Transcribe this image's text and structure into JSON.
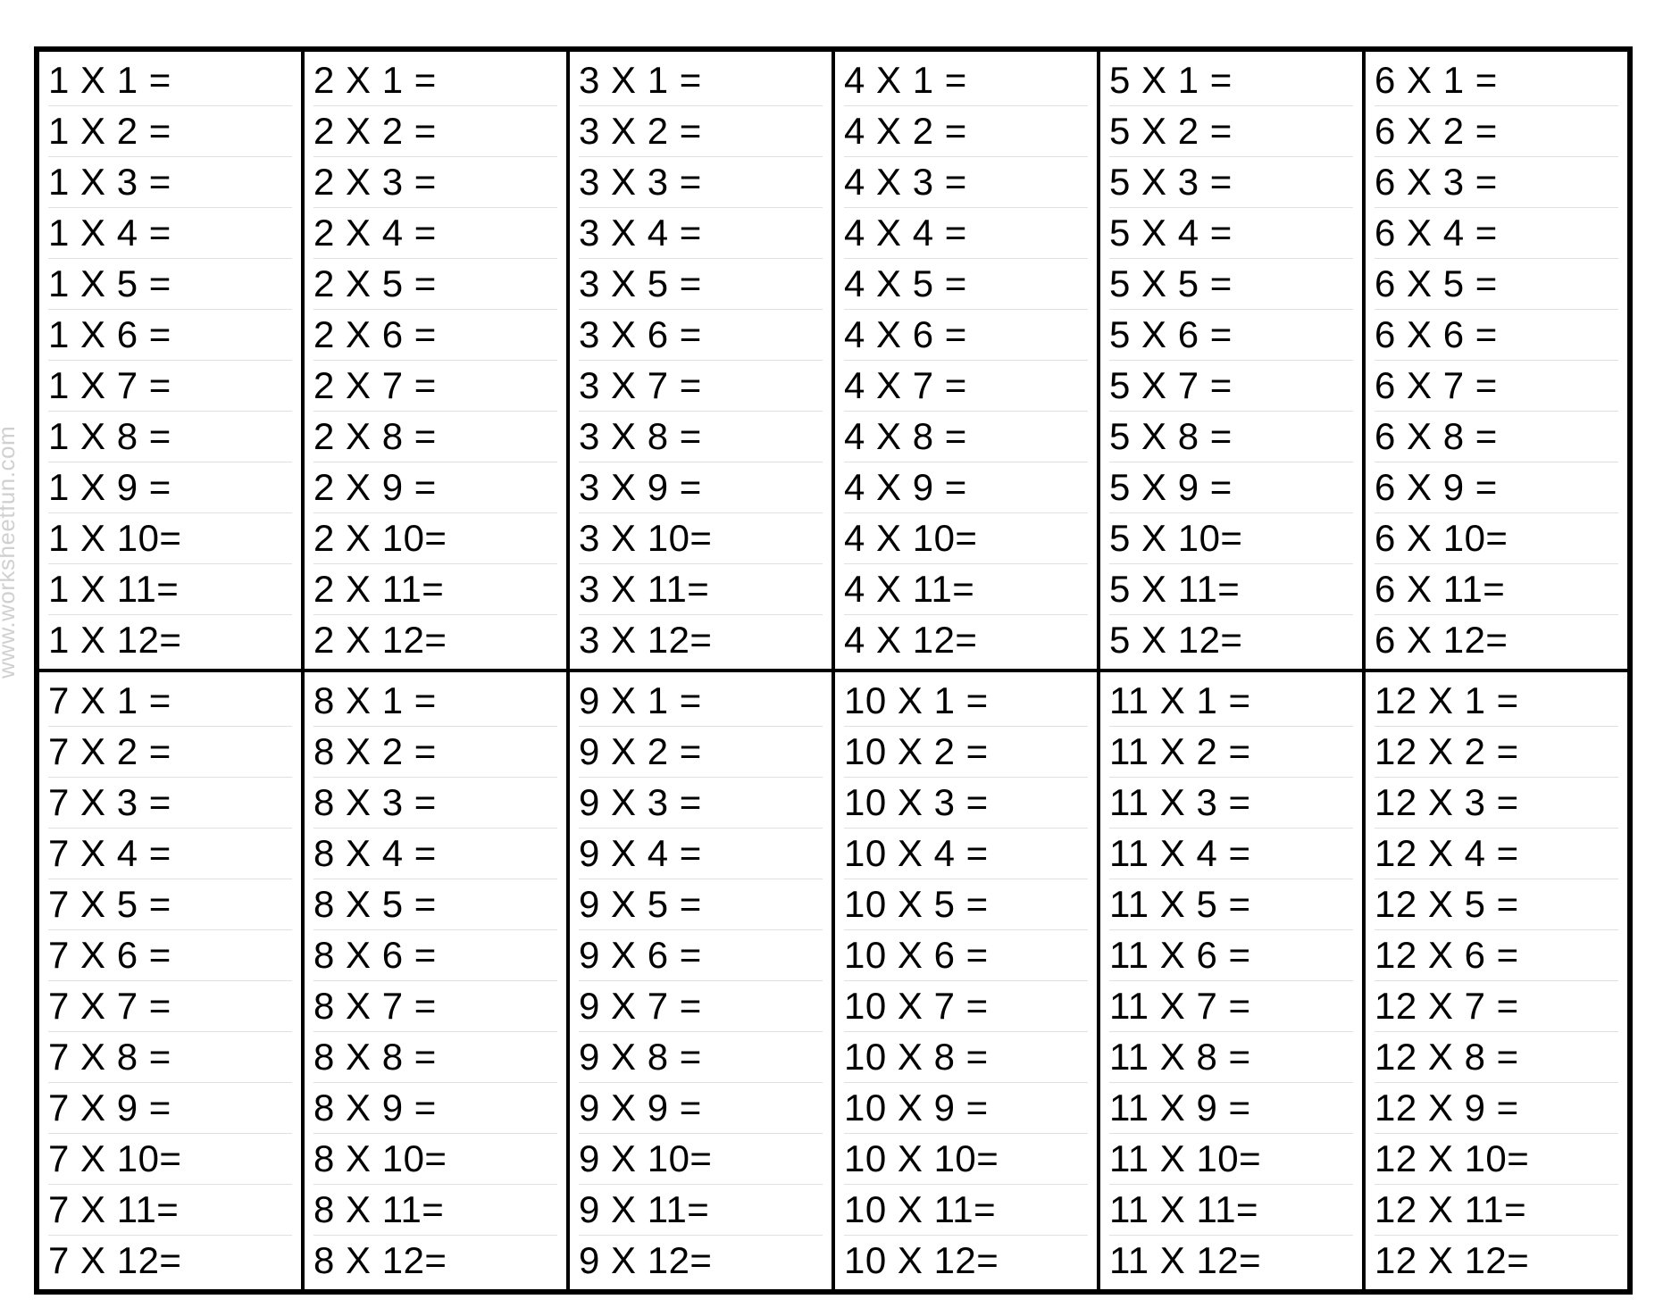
{
  "watermark": "www.worksheetfun.com",
  "layout": {
    "cols": 6,
    "rows": 2,
    "rows_per_cell": 12,
    "border_color": "#000000",
    "background_color": "#ffffff",
    "row_rule_color": "#e0e0e0",
    "font_family": "Comic Sans MS",
    "font_size_pt": 32,
    "text_color": "#000000"
  },
  "cells": [
    {
      "multiplicand": 1,
      "lines": [
        "1 X 1 =",
        "1 X 2 =",
        "1 X 3 =",
        "1 X 4 =",
        "1 X 5 =",
        "1 X 6 =",
        "1 X 7 =",
        "1 X 8 =",
        "1 X 9 =",
        "1 X 10=",
        "1 X 11=",
        "1 X 12="
      ]
    },
    {
      "multiplicand": 2,
      "lines": [
        "2 X 1 =",
        "2 X 2 =",
        "2 X 3 =",
        "2 X 4 =",
        "2 X 5 =",
        "2 X 6 =",
        "2 X 7 =",
        "2 X 8 =",
        "2 X 9 =",
        "2 X 10=",
        "2 X 11=",
        "2 X 12="
      ]
    },
    {
      "multiplicand": 3,
      "lines": [
        "3 X 1 =",
        "3 X 2 =",
        "3 X 3 =",
        "3 X 4 =",
        "3 X 5 =",
        "3 X 6 =",
        "3 X 7 =",
        "3 X 8 =",
        "3 X 9 =",
        "3 X 10=",
        "3 X 11=",
        "3 X 12="
      ]
    },
    {
      "multiplicand": 4,
      "lines": [
        "4 X 1 =",
        "4 X 2 =",
        "4 X 3 =",
        "4 X 4 =",
        "4 X 5 =",
        "4 X 6 =",
        "4 X 7 =",
        "4 X 8 =",
        "4 X 9 =",
        "4 X 10=",
        "4 X 11=",
        "4 X 12="
      ]
    },
    {
      "multiplicand": 5,
      "lines": [
        "5 X 1 =",
        "5 X 2 =",
        "5 X 3 =",
        "5 X 4 =",
        "5 X 5 =",
        "5 X 6 =",
        "5 X 7 =",
        "5 X 8 =",
        "5 X 9 =",
        "5 X 10=",
        "5 X 11=",
        "5 X 12="
      ]
    },
    {
      "multiplicand": 6,
      "lines": [
        "6 X 1 =",
        "6 X 2 =",
        "6 X 3 =",
        "6 X 4 =",
        "6 X 5 =",
        "6 X 6 =",
        "6 X 7 =",
        "6 X 8 =",
        "6 X 9 =",
        "6 X 10=",
        "6 X 11=",
        "6 X 12="
      ]
    },
    {
      "multiplicand": 7,
      "lines": [
        "7 X 1 =",
        "7 X 2 =",
        "7 X 3 =",
        "7 X 4 =",
        "7 X 5 =",
        "7 X 6 =",
        "7 X 7 =",
        "7 X 8 =",
        "7 X 9 =",
        "7 X 10=",
        "7 X 11=",
        "7 X 12="
      ]
    },
    {
      "multiplicand": 8,
      "lines": [
        "8 X 1 =",
        "8 X 2 =",
        "8 X 3 =",
        "8 X 4 =",
        "8 X 5 =",
        "8 X 6 =",
        "8 X 7 =",
        "8 X 8 =",
        "8 X 9 =",
        "8 X 10=",
        "8 X 11=",
        "8 X 12="
      ]
    },
    {
      "multiplicand": 9,
      "lines": [
        "9 X 1 =",
        "9 X 2 =",
        "9 X 3 =",
        "9 X 4 =",
        "9 X 5 =",
        "9 X 6 =",
        "9 X 7 =",
        "9 X 8 =",
        "9 X 9 =",
        "9 X 10=",
        "9 X 11=",
        "9 X 12="
      ]
    },
    {
      "multiplicand": 10,
      "lines": [
        "10 X 1 =",
        "10 X 2 =",
        "10 X 3 =",
        "10 X 4 =",
        "10 X 5 =",
        "10 X 6 =",
        "10 X 7 =",
        "10 X 8 =",
        "10 X 9 =",
        "10 X 10=",
        "10 X 11=",
        "10 X 12="
      ]
    },
    {
      "multiplicand": 11,
      "lines": [
        "11 X 1 =",
        "11 X 2 =",
        "11 X 3 =",
        "11 X 4 =",
        "11 X 5 =",
        "11 X 6 =",
        "11 X 7 =",
        "11 X 8 =",
        "11 X 9 =",
        "11 X 10=",
        "11 X 11=",
        "11 X 12="
      ]
    },
    {
      "multiplicand": 12,
      "lines": [
        "12 X 1 =",
        "12 X 2 =",
        "12 X 3 =",
        "12 X 4 =",
        "12 X 5 =",
        "12 X 6 =",
        "12 X 7 =",
        "12 X 8 =",
        "12 X 9 =",
        "12 X 10=",
        "12 X 11=",
        "12 X 12="
      ]
    }
  ]
}
